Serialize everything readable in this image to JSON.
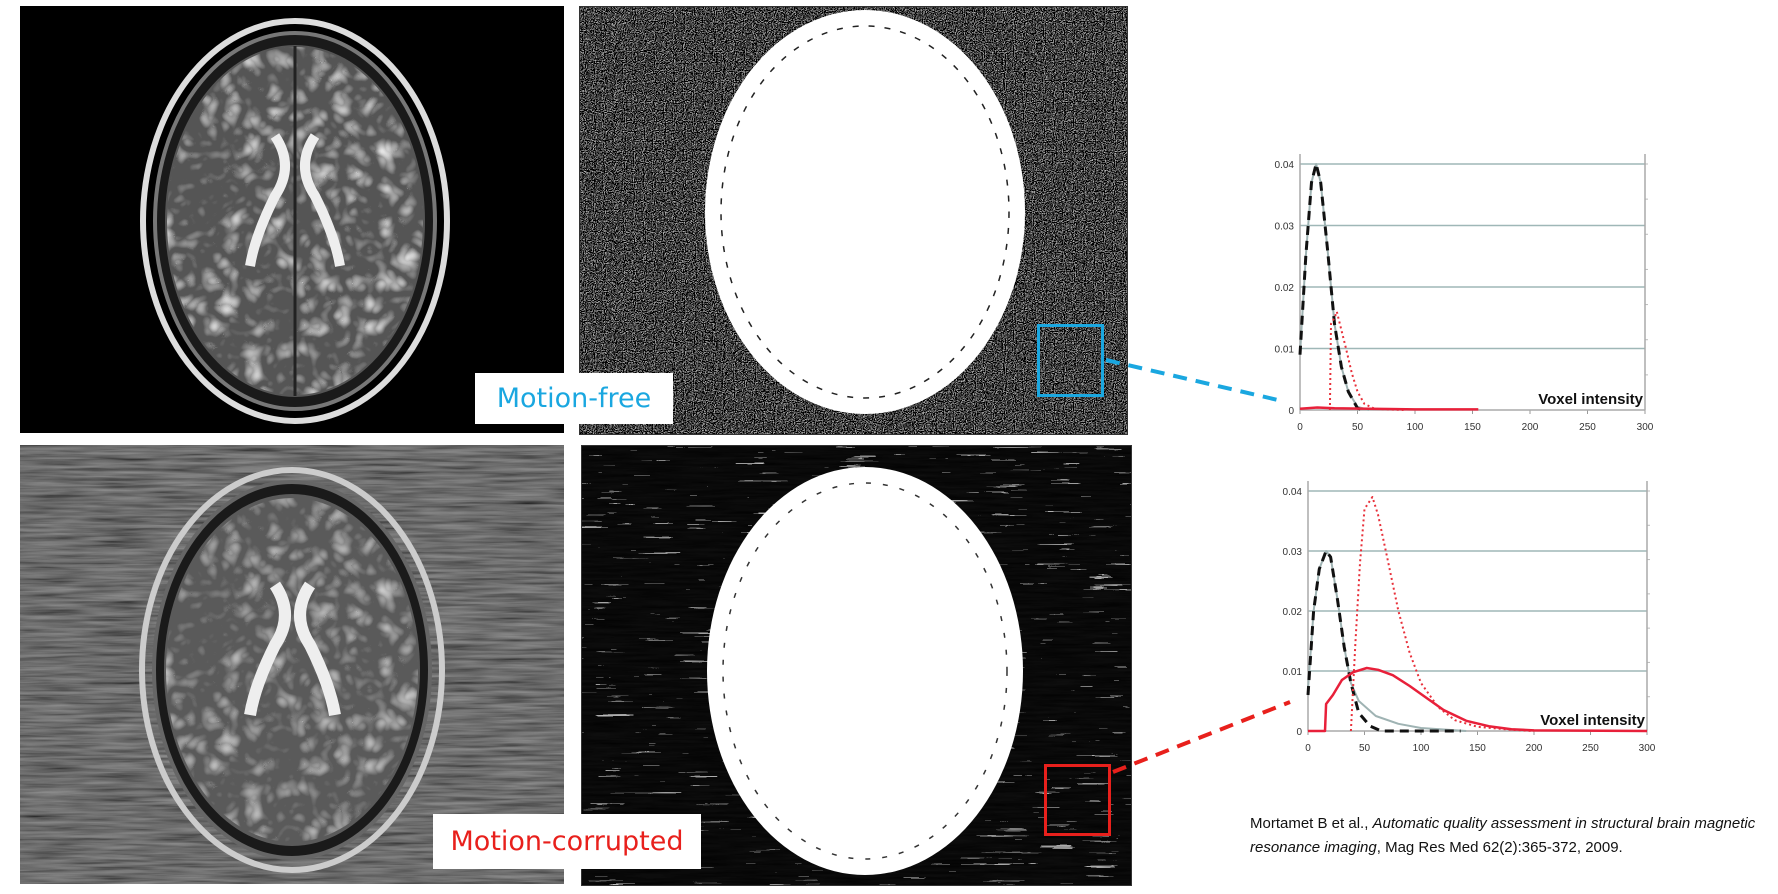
{
  "labels": {
    "motion_free": "Motion-free",
    "motion_corrupted": "Motion-corrupted"
  },
  "colors": {
    "motion_free": "#1aa7e0",
    "motion_corrupted": "#e8201c",
    "grid": "#9fb7b7"
  },
  "citation": {
    "authors": "Mortamet B et al., ",
    "title": "Automatic quality assessment in structural brain magnetic resonance imaging",
    "source": ", Mag Res Med 62(2):365-372, 2009."
  },
  "chart_data": [
    {
      "type": "line",
      "xlabel": "Voxel intensity",
      "xlim": [
        0,
        300
      ],
      "ylim": [
        0,
        0.04
      ],
      "xticks": [
        "0",
        "50",
        "100",
        "150",
        "200",
        "250",
        "300"
      ],
      "yticks": [
        "0",
        "0.01",
        "0.02",
        "0.03",
        "0.04"
      ],
      "grid": true,
      "series": [
        {
          "style": "gray-solid",
          "color": "#9fb3b3",
          "points": [
            [
              0,
              0.009
            ],
            [
              5,
              0.025
            ],
            [
              10,
              0.037
            ],
            [
              14,
              0.04
            ],
            [
              18,
              0.037
            ],
            [
              24,
              0.026
            ],
            [
              30,
              0.014
            ],
            [
              36,
              0.007
            ],
            [
              42,
              0.003
            ],
            [
              50,
              0.0005
            ],
            [
              60,
              0
            ]
          ]
        },
        {
          "style": "black-dashed",
          "color": "#111111",
          "points": [
            [
              0,
              0.009
            ],
            [
              5,
              0.025
            ],
            [
              10,
              0.037
            ],
            [
              14,
              0.04
            ],
            [
              18,
              0.037
            ],
            [
              24,
              0.026
            ],
            [
              30,
              0.014
            ],
            [
              36,
              0.007
            ],
            [
              42,
              0.003
            ],
            [
              50,
              0.0003
            ],
            [
              55,
              0
            ]
          ]
        },
        {
          "style": "red-dotted",
          "color": "#e8303a",
          "points": [
            [
              26,
              0
            ],
            [
              27,
              0.014
            ],
            [
              30,
              0.015
            ],
            [
              32,
              0.016
            ],
            [
              36,
              0.013
            ],
            [
              40,
              0.01
            ],
            [
              45,
              0.006
            ],
            [
              50,
              0.003
            ],
            [
              56,
              0.001
            ],
            [
              65,
              0.0002
            ],
            [
              90,
              0
            ]
          ]
        },
        {
          "style": "red-solid",
          "color": "#e8203a",
          "points": [
            [
              0,
              0.0002
            ],
            [
              15,
              0.0004
            ],
            [
              30,
              0.0003
            ],
            [
              60,
              0.0002
            ],
            [
              100,
              0.0001
            ],
            [
              155,
              0.0001
            ]
          ]
        }
      ]
    },
    {
      "type": "line",
      "xlabel": "Voxel intensity",
      "xlim": [
        0,
        300
      ],
      "ylim": [
        0,
        0.04
      ],
      "xticks": [
        "0",
        "50",
        "100",
        "150",
        "200",
        "250",
        "300"
      ],
      "yticks": [
        "0",
        "0.01",
        "0.02",
        "0.03",
        "0.04"
      ],
      "grid": true,
      "series": [
        {
          "style": "gray-solid",
          "color": "#9fb3b3",
          "points": [
            [
              0,
              0.007
            ],
            [
              5,
              0.02
            ],
            [
              10,
              0.027
            ],
            [
              16,
              0.03
            ],
            [
              20,
              0.029
            ],
            [
              26,
              0.022
            ],
            [
              32,
              0.014
            ],
            [
              38,
              0.008
            ],
            [
              45,
              0.005
            ],
            [
              60,
              0.0025
            ],
            [
              80,
              0.0012
            ],
            [
              100,
              0.0005
            ],
            [
              140,
              0
            ]
          ]
        },
        {
          "style": "black-dashed",
          "color": "#111111",
          "points": [
            [
              0,
              0.006
            ],
            [
              5,
              0.02
            ],
            [
              10,
              0.027
            ],
            [
              16,
              0.03
            ],
            [
              20,
              0.029
            ],
            [
              26,
              0.022
            ],
            [
              32,
              0.014
            ],
            [
              38,
              0.008
            ],
            [
              45,
              0.003
            ],
            [
              55,
              0.0008
            ],
            [
              65,
              0
            ],
            [
              135,
              0
            ]
          ]
        },
        {
          "style": "red-dotted",
          "color": "#e8303a",
          "points": [
            [
              38,
              0
            ],
            [
              42,
              0.015
            ],
            [
              46,
              0.028
            ],
            [
              50,
              0.037
            ],
            [
              57,
              0.039
            ],
            [
              62,
              0.036
            ],
            [
              70,
              0.029
            ],
            [
              80,
              0.02
            ],
            [
              90,
              0.013
            ],
            [
              100,
              0.008
            ],
            [
              115,
              0.004
            ],
            [
              130,
              0.0018
            ],
            [
              150,
              0.0007
            ],
            [
              180,
              0.0002
            ],
            [
              200,
              0
            ]
          ]
        },
        {
          "style": "red-solid",
          "color": "#e8203a",
          "points": [
            [
              0,
              0
            ],
            [
              15,
              0
            ],
            [
              16,
              0.0045
            ],
            [
              22,
              0.006
            ],
            [
              30,
              0.0085
            ],
            [
              40,
              0.0098
            ],
            [
              52,
              0.0105
            ],
            [
              62,
              0.0102
            ],
            [
              75,
              0.0093
            ],
            [
              90,
              0.0075
            ],
            [
              105,
              0.0055
            ],
            [
              120,
              0.0035
            ],
            [
              140,
              0.0017
            ],
            [
              160,
              0.0008
            ],
            [
              180,
              0.0003
            ],
            [
              200,
              0.0001
            ],
            [
              300,
              0
            ]
          ]
        }
      ]
    }
  ]
}
